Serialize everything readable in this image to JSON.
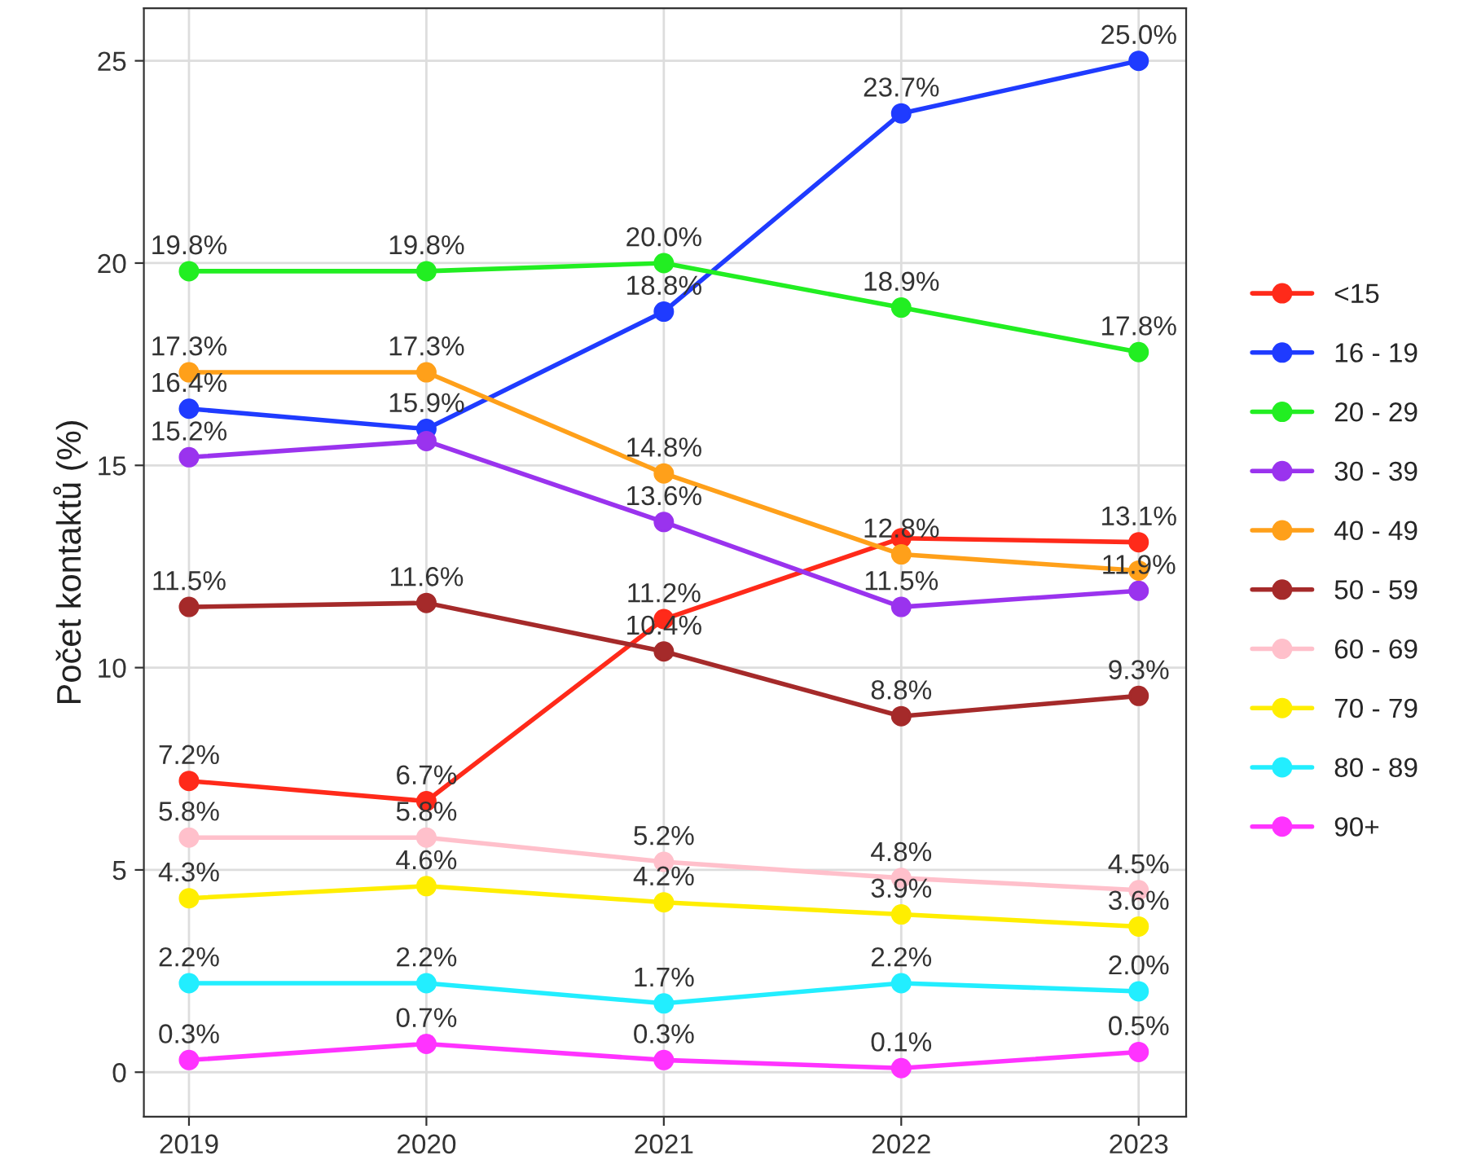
{
  "chart_data": {
    "type": "line",
    "ylabel": "Počet kontaktů (%)",
    "x": [
      2019,
      2020,
      2021,
      2022,
      2023
    ],
    "xlim": [
      2018.81,
      2023.2
    ],
    "xticks": [
      2019,
      2020,
      2021,
      2022,
      2023
    ],
    "ylim": [
      -1.1,
      26.3
    ],
    "yticks": [
      0,
      5,
      10,
      15,
      20,
      25
    ],
    "grid": true,
    "legend": "right",
    "marker": "circle",
    "line_style": "solid",
    "series": [
      {
        "name": "<15",
        "color": "#ff2a1a",
        "values": [
          7.2,
          6.7,
          11.2,
          13.2,
          13.1
        ],
        "value_labels": [
          "7.2%",
          "6.7%",
          "11.2%",
          null,
          "13.1%"
        ]
      },
      {
        "name": "16 - 19",
        "color": "#1f3bff",
        "values": [
          16.4,
          15.9,
          18.8,
          23.7,
          25.0
        ],
        "value_labels": [
          "16.4%",
          "15.9%",
          "18.8%",
          "23.7%",
          "25.0%"
        ]
      },
      {
        "name": "20 - 29",
        "color": "#22ee22",
        "values": [
          19.8,
          19.8,
          20.0,
          18.9,
          17.8
        ],
        "value_labels": [
          "19.8%",
          "19.8%",
          "20.0%",
          "18.9%",
          "17.8%"
        ]
      },
      {
        "name": "30 - 39",
        "color": "#9a33ee",
        "values": [
          15.2,
          15.6,
          13.6,
          11.5,
          11.9
        ],
        "value_labels": [
          "15.2%",
          null,
          "13.6%",
          "11.5%",
          "11.9%"
        ]
      },
      {
        "name": "40 - 49",
        "color": "#ffa01a",
        "values": [
          17.3,
          17.3,
          14.8,
          12.8,
          12.4
        ],
        "value_labels": [
          "17.3%",
          "17.3%",
          "14.8%",
          "12.8%",
          null
        ]
      },
      {
        "name": "50 - 59",
        "color": "#a52a2a",
        "values": [
          11.5,
          11.6,
          10.4,
          8.8,
          9.3
        ],
        "value_labels": [
          "11.5%",
          "11.6%",
          "10.4%",
          "8.8%",
          "9.3%"
        ]
      },
      {
        "name": "60 - 69",
        "color": "#ffc0cb",
        "values": [
          5.8,
          5.8,
          5.2,
          4.8,
          4.5
        ],
        "value_labels": [
          "5.8%",
          "5.8%",
          "5.2%",
          "4.8%",
          "4.5%"
        ]
      },
      {
        "name": "70 - 79",
        "color": "#ffee00",
        "values": [
          4.3,
          4.6,
          4.2,
          3.9,
          3.6
        ],
        "value_labels": [
          "4.3%",
          "4.6%",
          "4.2%",
          "3.9%",
          "3.6%"
        ]
      },
      {
        "name": "80 - 89",
        "color": "#22eeff",
        "values": [
          2.2,
          2.2,
          1.7,
          2.2,
          2.0
        ],
        "value_labels": [
          "2.2%",
          "2.2%",
          "1.7%",
          "2.2%",
          "2.0%"
        ]
      },
      {
        "name": "90+",
        "color": "#ff33ff",
        "values": [
          0.3,
          0.7,
          0.3,
          0.1,
          0.5
        ],
        "value_labels": [
          "0.3%",
          "0.7%",
          "0.3%",
          "0.1%",
          "0.5%"
        ]
      }
    ]
  }
}
